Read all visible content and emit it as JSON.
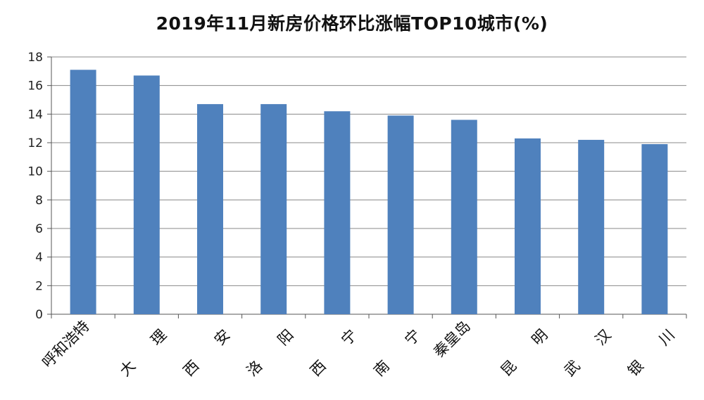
{
  "chart_data": {
    "type": "bar",
    "title": "2019年11月新房价格环比涨幅TOP10城市(%)",
    "categories": [
      "呼和浩特",
      "大　理",
      "西　安",
      "洛　阳",
      "西　宁",
      "南　宁",
      "秦皇岛",
      "昆　明",
      "武　汉",
      "银　川"
    ],
    "category_labels": [
      [
        "呼和浩特"
      ],
      [
        "大",
        "理"
      ],
      [
        "西",
        "安"
      ],
      [
        "洛",
        "阳"
      ],
      [
        "西",
        "宁"
      ],
      [
        "南",
        "宁"
      ],
      [
        "秦皇岛"
      ],
      [
        "昆",
        "明"
      ],
      [
        "武",
        "汉"
      ],
      [
        "银",
        "川"
      ]
    ],
    "values": [
      17.1,
      16.7,
      14.7,
      14.7,
      14.2,
      13.9,
      13.6,
      12.3,
      12.2,
      11.9
    ],
    "xlabel": "",
    "ylabel": "",
    "ylim": [
      0,
      18
    ],
    "yticks": [
      "0",
      "2",
      "4",
      "6",
      "8",
      "10",
      "12",
      "14",
      "16",
      "18"
    ],
    "grid": true,
    "bar_color": "#4F81BD",
    "grid_color": "#888888"
  }
}
